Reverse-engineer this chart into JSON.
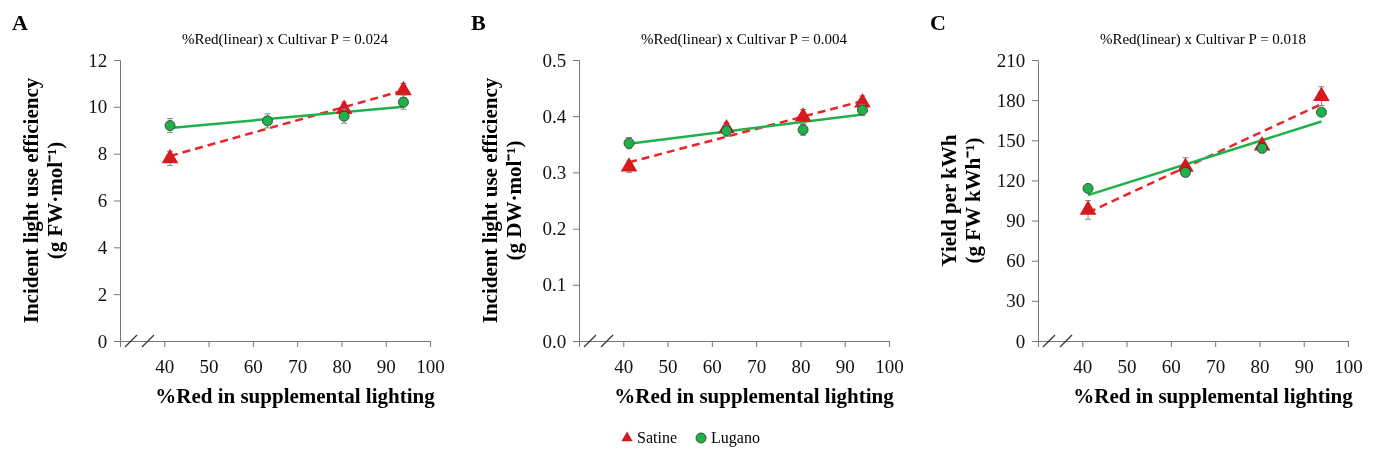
{
  "chart_data": [
    {
      "type": "scatter",
      "title": "%Red(linear) x Cultivar P = 0.024",
      "xlabel": "%Red in supplemental lighting",
      "ylabel": "Incident light use efficiency\n(g FW·mol⁻¹)",
      "annotations": [
        "A"
      ],
      "xlim": [
        30,
        100
      ],
      "xticks": [
        40,
        50,
        60,
        70,
        80,
        90,
        100
      ],
      "ylim": [
        0,
        12
      ],
      "yticks": [
        0,
        2,
        4,
        6,
        8,
        10,
        12
      ],
      "series": [
        {
          "type": "line",
          "color": "#e8262a",
          "line_style": "dashed",
          "x": [
            41.3,
            94
          ],
          "values": [
            7.9,
            10.7
          ]
        },
        {
          "type": "line",
          "color": "#1fb24a",
          "line_style": "solid",
          "x": [
            41.3,
            94
          ],
          "values": [
            9.1,
            10.0
          ]
        },
        {
          "color": "#d7191c",
          "marker": "triangle",
          "x": [
            41.3,
            63.3,
            80.6,
            94
          ],
          "values": [
            7.8,
            null,
            9.9,
            10.7
          ],
          "errors": [
            0.3,
            null,
            0.3,
            0.3
          ]
        },
        {
          "color": "#1fb24a",
          "marker": "circle",
          "x": [
            41.3,
            63.3,
            80.6,
            94
          ],
          "values": [
            9.2,
            9.4,
            9.6,
            10.2
          ],
          "errors": [
            0.3,
            0.3,
            0.3,
            0.3
          ]
        }
      ]
    },
    {
      "type": "scatter",
      "title": "%Red(linear) x Cultivar P = 0.004",
      "xlabel": "%Red in supplemental lighting",
      "ylabel": "Incident light use efficiency\n(g DW·mol⁻¹)",
      "annotations": [
        "B"
      ],
      "xlim": [
        30,
        100
      ],
      "xticks": [
        40,
        50,
        60,
        70,
        80,
        90,
        100
      ],
      "ylim": [
        0,
        0.5
      ],
      "yticks": [
        {
          "value": 0,
          "label": "0.0"
        },
        0.1,
        0.2,
        0.3,
        0.4,
        0.5
      ],
      "legend": "bottom",
      "series": [
        {
          "type": "line",
          "color": "#e8262a",
          "line_style": "dashed",
          "x": [
            41.3,
            94
          ],
          "values": [
            0.318,
            0.427
          ]
        },
        {
          "type": "line",
          "color": "#1fb24a",
          "line_style": "solid",
          "x": [
            41.3,
            94
          ],
          "values": [
            0.351,
            0.403
          ]
        },
        {
          "name": "Satine",
          "color": "#d7191c",
          "marker": "triangle",
          "x": [
            41.3,
            63.3,
            80.6,
            94
          ],
          "values": [
            0.31,
            0.378,
            0.399,
            0.424
          ],
          "errors": [
            0.01,
            0.01,
            0.013,
            0.012
          ]
        },
        {
          "name": "Lugano",
          "color": "#1fb24a",
          "marker": "circle",
          "x": [
            41.3,
            63.3,
            80.6,
            94
          ],
          "values": [
            0.352,
            0.374,
            0.376,
            0.411
          ],
          "errors": [
            0.01,
            0.01,
            0.01,
            0.01
          ]
        }
      ]
    },
    {
      "type": "scatter",
      "title": "%Red(linear) x Cultivar P = 0.018",
      "xlabel": "%Red in supplemental lighting",
      "ylabel": "Yield per kWh\n(g FW kWh⁻¹)",
      "annotations": [
        "C"
      ],
      "xlim": [
        30,
        100
      ],
      "xticks": [
        40,
        50,
        60,
        70,
        80,
        90,
        100
      ],
      "ylim": [
        0,
        210
      ],
      "yticks": [
        0,
        30,
        60,
        90,
        120,
        150,
        180,
        210
      ],
      "series": [
        {
          "type": "line",
          "color": "#e8262a",
          "line_style": "dashed",
          "x": [
            41.3,
            94
          ],
          "values": [
            96,
            177
          ]
        },
        {
          "type": "line",
          "color": "#1fb24a",
          "line_style": "solid",
          "x": [
            41.3,
            94
          ],
          "values": [
            109,
            164
          ]
        },
        {
          "color": "#d7191c",
          "marker": "triangle",
          "x": [
            41.3,
            63.3,
            80.6,
            94
          ],
          "values": [
            98,
            130,
            146,
            183
          ],
          "errors": [
            7,
            7,
            5,
            7
          ]
        },
        {
          "color": "#1fb24a",
          "marker": "circle",
          "x": [
            41.3,
            63.3,
            80.6,
            94
          ],
          "values": [
            114,
            126,
            144,
            171
          ]
        }
      ]
    }
  ]
}
